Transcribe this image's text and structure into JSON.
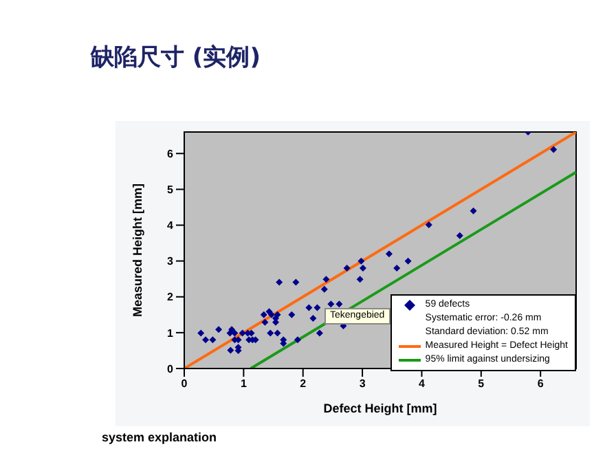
{
  "chart_data": {
    "type": "scatter",
    "title": "缺陷尺寸 (实例)",
    "xlabel": "Defect Height [mm]",
    "ylabel": "Measured Height [mm]",
    "xlim": [
      0,
      6.6
    ],
    "ylim": [
      0,
      6.6
    ],
    "xticks": [
      0,
      1,
      2,
      3,
      4,
      5,
      6
    ],
    "yticks": [
      0,
      1,
      2,
      3,
      4,
      5,
      6
    ],
    "legend": "bottom right",
    "annotations": [
      "Systematic error: -0.26 mm",
      "Standard deviation: 0.52 mm",
      "Tekengebied",
      "system explanation"
    ],
    "series": [
      {
        "name": "59 defects",
        "color": "#00008b",
        "marker": "diamond",
        "x": [
          0.28,
          0.36,
          0.48,
          0.58,
          0.77,
          0.8,
          0.78,
          0.85,
          0.85,
          0.91,
          0.91,
          0.91,
          0.98,
          1.07,
          1.09,
          1.13,
          1.15,
          1.2,
          1.34,
          1.36,
          1.43,
          1.47,
          1.45,
          1.54,
          1.54,
          1.57,
          1.57,
          1.6,
          1.67,
          1.67,
          1.81,
          1.88,
          1.91,
          2.1,
          2.17,
          2.24,
          2.28,
          2.36,
          2.39,
          2.47,
          2.61,
          2.68,
          2.74,
          2.96,
          2.98,
          3.01,
          3.45,
          3.58,
          3.77,
          4.12,
          4.64,
          4.87,
          5.79,
          6.22
        ],
        "values": [
          0.99,
          0.8,
          0.8,
          1.09,
          0.99,
          1.09,
          0.51,
          0.99,
          0.8,
          0.8,
          0.59,
          0.5,
          0.99,
          0.99,
          0.8,
          0.99,
          0.8,
          0.8,
          1.5,
          1.29,
          1.59,
          1.5,
          0.99,
          1.29,
          1.4,
          1.5,
          0.99,
          2.41,
          0.8,
          0.7,
          1.5,
          2.41,
          0.8,
          1.7,
          1.4,
          1.7,
          0.99,
          2.21,
          2.49,
          1.8,
          1.8,
          1.19,
          2.8,
          2.49,
          3.0,
          2.8,
          3.2,
          2.8,
          3.0,
          4.01,
          3.71,
          4.4,
          6.6,
          6.11
        ]
      },
      {
        "name": "Measured Height = Defect Height",
        "type": "line",
        "color": "#ff6a13",
        "marker": "none",
        "line_style": "solid",
        "x": [
          0,
          6.6
        ],
        "values": [
          0,
          6.6
        ]
      },
      {
        "name": "95% limit against undersizing",
        "type": "line",
        "color": "#1a9a1a",
        "marker": "none",
        "line_style": "solid",
        "x": [
          1.12,
          6.6
        ],
        "values": [
          0,
          5.48
        ]
      }
    ]
  }
}
